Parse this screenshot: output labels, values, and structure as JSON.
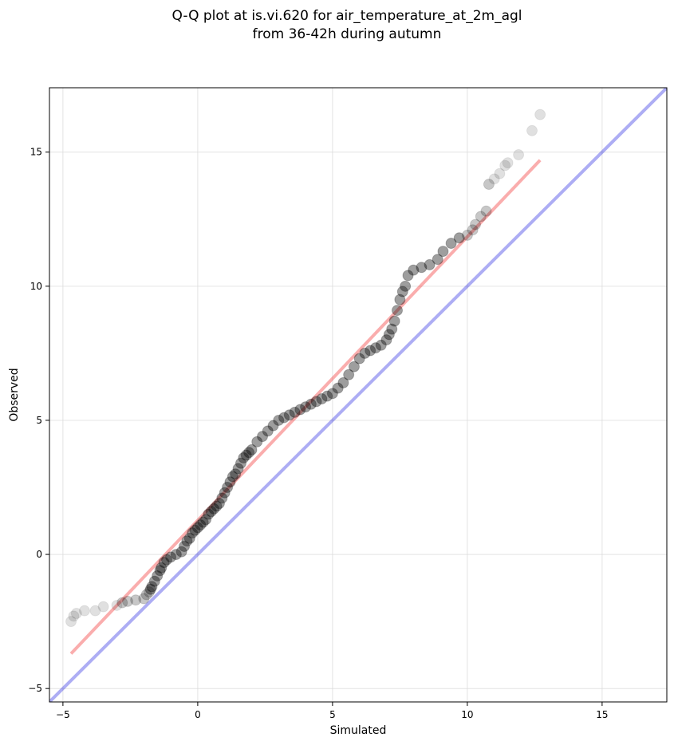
{
  "chart_data": {
    "type": "scatter",
    "title": "Q-Q plot at is.vi.620 for air_temperature_at_2m_agl",
    "subtitle": "from 36-42h during autumn",
    "xlabel": "Simulated",
    "ylabel": "Observed",
    "xlim": [
      -5.5,
      17.4
    ],
    "ylim": [
      -5.5,
      17.4
    ],
    "xticks": [
      -5,
      0,
      5,
      10,
      15
    ],
    "yticks": [
      -5,
      0,
      5,
      10,
      15
    ],
    "xtick_labels": [
      "−5",
      "0",
      "5",
      "10",
      "15"
    ],
    "ytick_labels": [
      "−5",
      "0",
      "5",
      "10",
      "15"
    ],
    "grid": true,
    "identity_line": {
      "color": "#0000dd",
      "x": [
        -5.5,
        17.4
      ],
      "y": [
        -5.5,
        17.4
      ]
    },
    "fit_line": {
      "color": "#ee0000",
      "x": [
        -4.7,
        12.7
      ],
      "y": [
        -3.7,
        14.7
      ]
    },
    "quantiles": {
      "color": "#000000",
      "x": [
        -4.7,
        -4.6,
        -4.5,
        -4.2,
        -3.8,
        -3.5,
        -3.0,
        -2.8,
        -2.6,
        -2.3,
        -2.0,
        -1.9,
        -1.8,
        -1.75,
        -1.7,
        -1.6,
        -1.5,
        -1.4,
        -1.35,
        -1.25,
        -1.15,
        -1.0,
        -0.8,
        -0.6,
        -0.5,
        -0.4,
        -0.3,
        -0.2,
        -0.1,
        0.0,
        0.1,
        0.2,
        0.3,
        0.4,
        0.5,
        0.6,
        0.7,
        0.8,
        0.9,
        1.0,
        1.1,
        1.2,
        1.3,
        1.4,
        1.5,
        1.6,
        1.7,
        1.8,
        1.9,
        2.0,
        2.2,
        2.4,
        2.6,
        2.8,
        3.0,
        3.2,
        3.4,
        3.6,
        3.8,
        4.0,
        4.2,
        4.4,
        4.6,
        4.8,
        5.0,
        5.2,
        5.4,
        5.6,
        5.8,
        6.0,
        6.2,
        6.4,
        6.6,
        6.8,
        7.0,
        7.1,
        7.2,
        7.3,
        7.4,
        7.5,
        7.6,
        7.7,
        7.8,
        8.0,
        8.3,
        8.6,
        8.9,
        9.1,
        9.4,
        9.7,
        10.0,
        10.2,
        10.3,
        10.5,
        10.7,
        10.8,
        11.0,
        11.2,
        11.4,
        11.5,
        11.9,
        12.4,
        12.7
      ],
      "y": [
        -2.5,
        -2.3,
        -2.2,
        -2.1,
        -2.1,
        -1.95,
        -1.9,
        -1.8,
        -1.75,
        -1.7,
        -1.65,
        -1.5,
        -1.4,
        -1.3,
        -1.2,
        -1.0,
        -0.8,
        -0.6,
        -0.5,
        -0.3,
        -0.2,
        -0.1,
        0.0,
        0.1,
        0.3,
        0.5,
        0.6,
        0.8,
        0.9,
        1.0,
        1.1,
        1.2,
        1.3,
        1.5,
        1.6,
        1.7,
        1.8,
        1.9,
        2.1,
        2.3,
        2.5,
        2.7,
        2.9,
        3.0,
        3.2,
        3.4,
        3.6,
        3.7,
        3.8,
        3.9,
        4.2,
        4.4,
        4.6,
        4.8,
        5.0,
        5.1,
        5.2,
        5.3,
        5.4,
        5.5,
        5.6,
        5.7,
        5.8,
        5.9,
        6.0,
        6.2,
        6.4,
        6.7,
        7.0,
        7.3,
        7.5,
        7.6,
        7.7,
        7.8,
        8.0,
        8.2,
        8.4,
        8.7,
        9.1,
        9.5,
        9.8,
        10.0,
        10.4,
        10.6,
        10.7,
        10.8,
        11.0,
        11.3,
        11.6,
        11.8,
        11.9,
        12.1,
        12.3,
        12.6,
        12.8,
        13.8,
        14.0,
        14.2,
        14.5,
        14.6,
        14.9,
        15.8,
        16.4
      ]
    }
  }
}
